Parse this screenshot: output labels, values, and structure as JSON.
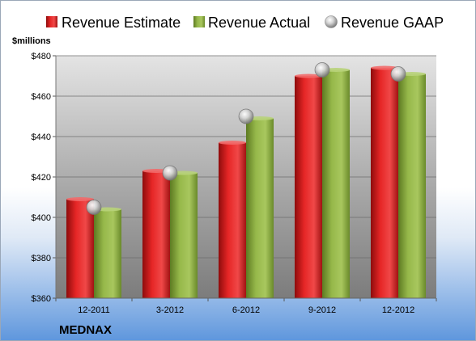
{
  "chart_data": {
    "type": "bar",
    "unit_label": "$millions",
    "company": "MEDNAX",
    "categories": [
      "12-2011",
      "3-2012",
      "6-2012",
      "9-2012",
      "12-2012"
    ],
    "series": [
      {
        "name": "Revenue Estimate",
        "kind": "bar",
        "color": "#dd1a1a",
        "values": [
          409,
          423,
          437,
          470,
          474
        ]
      },
      {
        "name": "Revenue Actual",
        "kind": "bar",
        "color": "#8caf3c",
        "values": [
          404,
          422,
          449,
          473,
          471
        ]
      },
      {
        "name": "Revenue GAAP",
        "kind": "marker",
        "color": "#c8c8c8",
        "values": [
          405,
          422,
          450,
          473,
          471
        ]
      }
    ],
    "yticks": [
      "$360",
      "$380",
      "$400",
      "$420",
      "$440",
      "$460",
      "$480"
    ],
    "ylim": [
      360,
      480
    ],
    "grid": true,
    "legend_position": "top"
  }
}
